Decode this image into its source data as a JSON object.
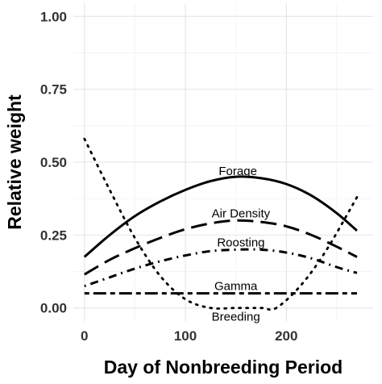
{
  "chart_data": {
    "type": "line",
    "title": "",
    "xlabel": "Day of Nonbreeding Period",
    "ylabel": "Relative weight",
    "xlim": [
      -11,
      286
    ],
    "ylim": [
      -0.045,
      1.045
    ],
    "x_ticks": [
      0,
      100,
      200
    ],
    "y_ticks": [
      0.0,
      0.25,
      0.5,
      0.75,
      1.0
    ],
    "x_tick_labels": [
      "0",
      "100",
      "200"
    ],
    "y_tick_labels": [
      "0.00",
      "0.25",
      "0.50",
      "0.75",
      "1.00"
    ],
    "grid": true,
    "legend": "none",
    "series": [
      {
        "name": "Forage",
        "linestyle": "solid",
        "x": [
          0,
          25,
          50,
          75,
          100,
          125,
          150,
          175,
          200,
          225,
          250,
          270
        ],
        "y": [
          0.175,
          0.25,
          0.315,
          0.365,
          0.405,
          0.435,
          0.45,
          0.445,
          0.425,
          0.385,
          0.325,
          0.265
        ]
      },
      {
        "name": "Air Density",
        "linestyle": "longdash",
        "x": [
          0,
          25,
          50,
          75,
          100,
          125,
          150,
          175,
          200,
          225,
          250,
          270
        ],
        "y": [
          0.115,
          0.165,
          0.205,
          0.24,
          0.27,
          0.29,
          0.3,
          0.295,
          0.28,
          0.25,
          0.21,
          0.175
        ]
      },
      {
        "name": "Roosting",
        "linestyle": "dotdash",
        "x": [
          0,
          25,
          50,
          75,
          100,
          125,
          150,
          175,
          200,
          225,
          250,
          270
        ],
        "y": [
          0.075,
          0.105,
          0.135,
          0.16,
          0.18,
          0.195,
          0.2,
          0.2,
          0.19,
          0.17,
          0.14,
          0.12
        ]
      },
      {
        "name": "Gamma",
        "linestyle": "twodash",
        "x": [
          0,
          270
        ],
        "y": [
          0.05,
          0.05
        ]
      },
      {
        "name": "Breeding",
        "linestyle": "dotted",
        "x": [
          0,
          25,
          50,
          75,
          100,
          125,
          150,
          175,
          190,
          215,
          240,
          270
        ],
        "y": [
          0.58,
          0.405,
          0.24,
          0.11,
          0.03,
          0.0,
          0.0,
          0.0,
          0.0,
          0.08,
          0.2,
          0.38
        ]
      }
    ],
    "annotations": [
      {
        "text": "Forage",
        "x": 152,
        "y": 0.47
      },
      {
        "text": "Air Density",
        "x": 155,
        "y": 0.325
      },
      {
        "text": "Roosting",
        "x": 155,
        "y": 0.225
      },
      {
        "text": "Gamma",
        "x": 150,
        "y": 0.075
      },
      {
        "text": "Breeding",
        "x": 150,
        "y": -0.03
      }
    ]
  }
}
